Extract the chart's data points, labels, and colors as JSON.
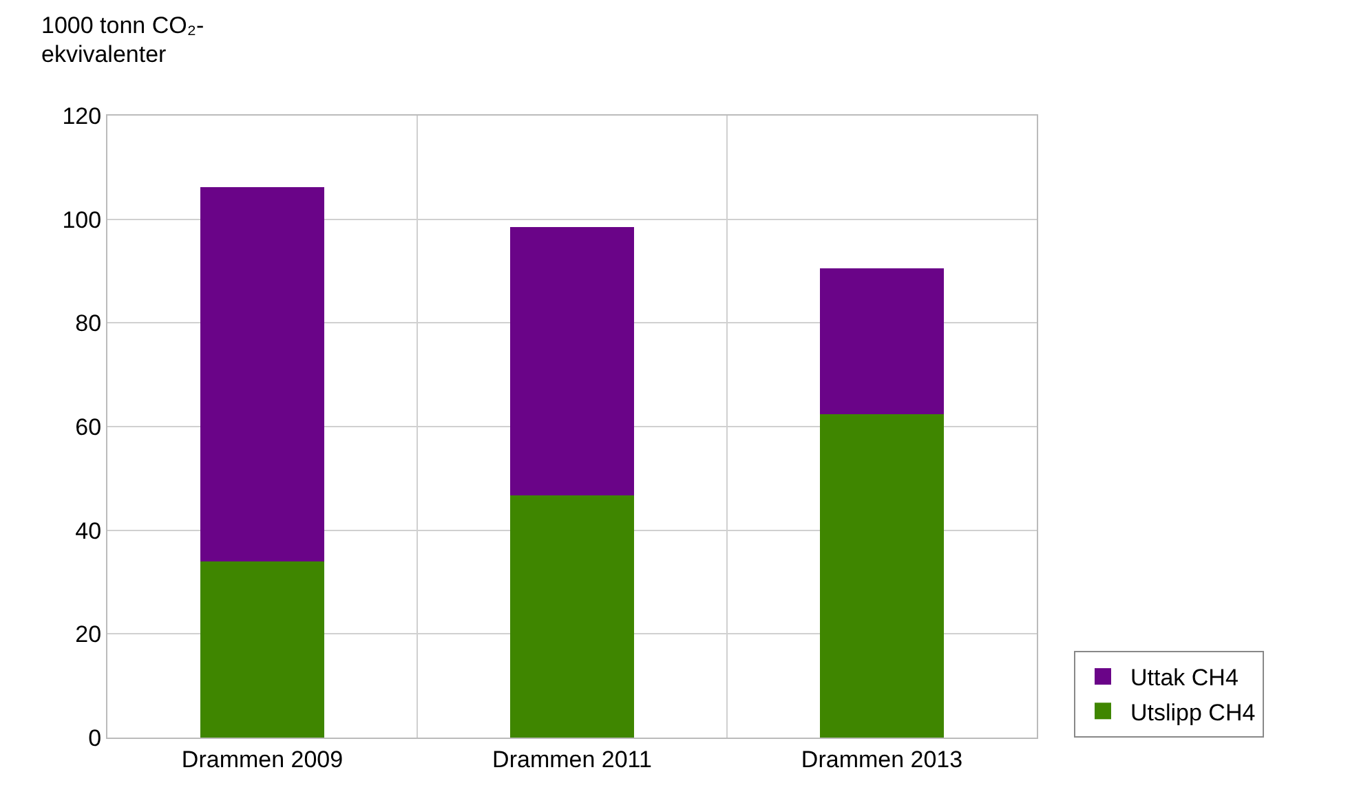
{
  "chart_data": {
    "type": "bar",
    "stacked": true,
    "ylabel": "1000 tonn CO₂-ekvivalenter",
    "categories": [
      "Drammen 2009",
      "Drammen 2011",
      "Drammen 2013"
    ],
    "series": [
      {
        "name": "Utslipp CH4",
        "color": "#3f8600",
        "values": [
          34.0,
          46.7,
          62.4
        ]
      },
      {
        "name": "Uttak CH4",
        "color": "#6a0488",
        "values": [
          72.2,
          51.8,
          28.1
        ]
      }
    ],
    "ylim": [
      0,
      120
    ],
    "yticks": [
      0,
      20,
      40,
      60,
      80,
      100,
      120
    ],
    "grid": true,
    "legend": "bottom right"
  }
}
